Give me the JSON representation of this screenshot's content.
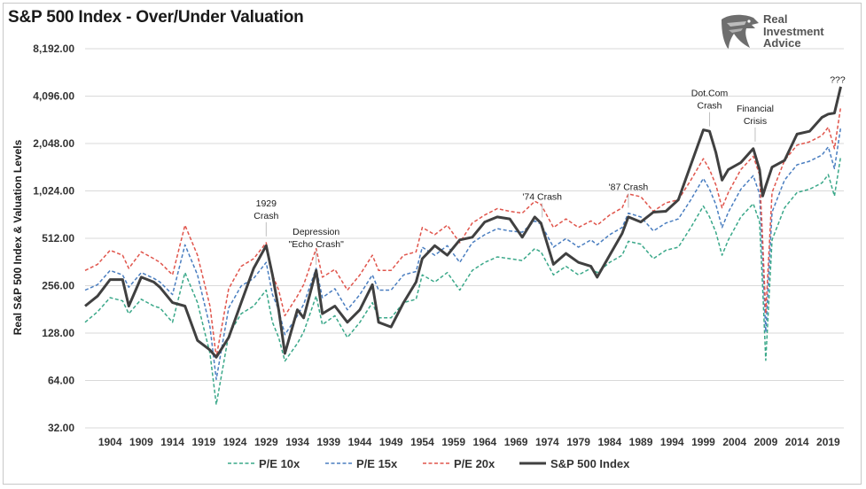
{
  "title": "S&P 500 Index - Over/Under Valuation",
  "logo": {
    "line1": "Real",
    "line2": "Investment",
    "line3": "Advice",
    "icon": "eagle-head-icon"
  },
  "chart_data": {
    "type": "line",
    "title": "S&P 500 Index - Over/Under Valuation",
    "ylabel": "Real S&P 500 Index & Valuation Levels",
    "xlabel": "",
    "yscale": "log2",
    "ylim": [
      32,
      8192
    ],
    "xlim": [
      1900,
      2021.5
    ],
    "yticks": [
      "32.00",
      "64.00",
      "128.00",
      "256.00",
      "512.00",
      "1,024.00",
      "2,048.00",
      "4,096.00",
      "8,192.00"
    ],
    "ytick_values": [
      32,
      64,
      128,
      256,
      512,
      1024,
      2048,
      4096,
      8192
    ],
    "xticks": [
      "1904",
      "1909",
      "1914",
      "1919",
      "1924",
      "1929",
      "1934",
      "1939",
      "1944",
      "1949",
      "1954",
      "1959",
      "1964",
      "1969",
      "1974",
      "1979",
      "1984",
      "1989",
      "1994",
      "1999",
      "2004",
      "2009",
      "2014",
      "2019"
    ],
    "xtick_values": [
      1904,
      1909,
      1914,
      1919,
      1924,
      1929,
      1934,
      1939,
      1944,
      1949,
      1954,
      1959,
      1964,
      1969,
      1974,
      1979,
      1984,
      1989,
      1994,
      1999,
      2004,
      2009,
      2014,
      2019
    ],
    "grid": true,
    "legend_position": "bottom",
    "x": [
      1900,
      1902,
      1904,
      1906,
      1907,
      1909,
      1911,
      1912,
      1914,
      1916,
      1918,
      1920,
      1921,
      1923,
      1925,
      1927,
      1929,
      1930,
      1931,
      1932,
      1934,
      1935,
      1937,
      1938,
      1940,
      1942,
      1944,
      1946,
      1947,
      1949,
      1951,
      1953,
      1954,
      1956,
      1958,
      1960,
      1962,
      1964,
      1966,
      1968,
      1970,
      1972,
      1973,
      1975,
      1977,
      1979,
      1981,
      1982,
      1984,
      1986,
      1987,
      1989,
      1991,
      1993,
      1995,
      1997,
      1999,
      2000,
      2001,
      2002,
      2003,
      2005,
      2007,
      2008,
      2008.5,
      2009,
      2010,
      2012,
      2014,
      2016,
      2018,
      2019,
      2020,
      2021
    ],
    "series": [
      {
        "name": "P/E 10x",
        "color": "#3aa889",
        "dash": "dashed",
        "values": [
          150,
          175,
          215,
          205,
          170,
          210,
          190,
          185,
          150,
          310,
          200,
          95,
          45,
          125,
          170,
          190,
          240,
          150,
          120,
          85,
          110,
          130,
          220,
          145,
          165,
          120,
          150,
          200,
          160,
          160,
          200,
          210,
          300,
          270,
          310,
          240,
          320,
          360,
          390,
          380,
          370,
          440,
          420,
          300,
          340,
          300,
          330,
          310,
          360,
          400,
          490,
          470,
          380,
          430,
          450,
          600,
          820,
          700,
          560,
          400,
          500,
          700,
          850,
          650,
          250,
          86,
          500,
          800,
          1000,
          1050,
          1150,
          1300,
          950,
          1700
        ]
      },
      {
        "name": "P/E 15x",
        "color": "#4a7ec0",
        "dash": "dashed",
        "values": [
          240,
          260,
          320,
          300,
          250,
          310,
          285,
          270,
          225,
          465,
          300,
          140,
          65,
          185,
          255,
          285,
          360,
          225,
          180,
          125,
          165,
          195,
          330,
          215,
          245,
          180,
          225,
          300,
          240,
          240,
          300,
          315,
          450,
          400,
          460,
          360,
          480,
          540,
          590,
          570,
          560,
          660,
          630,
          450,
          510,
          450,
          500,
          465,
          540,
          600,
          740,
          700,
          570,
          640,
          680,
          900,
          1230,
          1050,
          840,
          600,
          750,
          1050,
          1280,
          980,
          380,
          130,
          750,
          1200,
          1500,
          1580,
          1730,
          1950,
          1420,
          2600
        ]
      },
      {
        "name": "P/E 20x",
        "color": "#e0554c",
        "dash": "dashed",
        "values": [
          320,
          350,
          430,
          400,
          330,
          420,
          380,
          360,
          300,
          620,
          400,
          190,
          90,
          245,
          340,
          380,
          480,
          300,
          240,
          165,
          220,
          260,
          440,
          290,
          325,
          240,
          300,
          400,
          320,
          320,
          400,
          420,
          600,
          540,
          620,
          480,
          640,
          720,
          790,
          760,
          740,
          880,
          840,
          600,
          680,
          600,
          660,
          620,
          720,
          800,
          980,
          940,
          760,
          860,
          900,
          1200,
          1640,
          1400,
          1120,
          800,
          1000,
          1400,
          1700,
          1300,
          500,
          170,
          1000,
          1600,
          2000,
          2100,
          2300,
          2600,
          1900,
          3500
        ]
      },
      {
        "name": "S&P 500 Index",
        "color": "#404040",
        "dash": "solid",
        "values": [
          190,
          220,
          280,
          280,
          190,
          290,
          270,
          250,
          200,
          190,
          115,
          100,
          90,
          120,
          200,
          330,
          460,
          300,
          180,
          95,
          180,
          160,
          320,
          170,
          190,
          150,
          180,
          260,
          150,
          140,
          200,
          270,
          380,
          460,
          400,
          500,
          520,
          650,
          700,
          680,
          520,
          700,
          640,
          350,
          410,
          360,
          340,
          290,
          400,
          550,
          700,
          650,
          750,
          760,
          900,
          1500,
          2500,
          2450,
          1800,
          1200,
          1400,
          1550,
          1900,
          1400,
          950,
          1100,
          1450,
          1600,
          2350,
          2450,
          3000,
          3150,
          3200,
          4700
        ]
      }
    ],
    "annotations": [
      {
        "text": "1929 Crash",
        "lines": [
          "1929",
          "Crash"
        ],
        "x": 1929,
        "y": 500
      },
      {
        "text": "Depression \"Echo Crash\"",
        "lines": [
          "Depression",
          "\"Echo Crash\""
        ],
        "x": 1937,
        "y": 330
      },
      {
        "text": "'74 Crash",
        "lines": [
          "'74 Crash"
        ],
        "x": 1973.2,
        "y": 660
      },
      {
        "text": "'87 Crash",
        "lines": [
          "'87 Crash"
        ],
        "x": 1987,
        "y": 760
      },
      {
        "text": "Dot.Com Crash",
        "lines": [
          "Dot.Com",
          "Crash"
        ],
        "x": 2000,
        "y": 2500
      },
      {
        "text": "Financial Crisis",
        "lines": [
          "Financial",
          "Crisis"
        ],
        "x": 2007.3,
        "y": 2000
      },
      {
        "text": "???",
        "lines": [
          "???"
        ],
        "x": 2020.5,
        "y": 4600
      }
    ]
  }
}
